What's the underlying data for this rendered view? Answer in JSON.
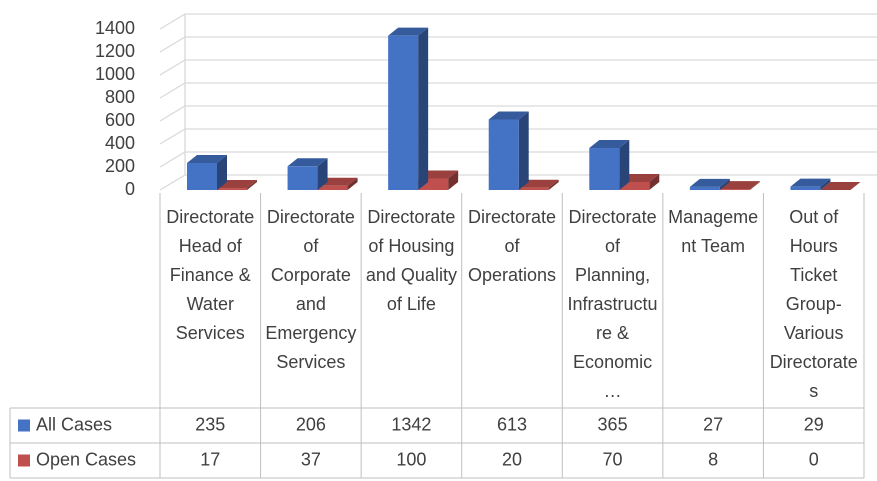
{
  "chart_data": {
    "type": "bar3d",
    "categories": [
      "Directorate Head of Finance & Water Services",
      "Directorate of Corporate and Emergency Services",
      "Directorate of Housing and Quality of Life",
      "Directorate of Operations",
      "Directorate of Planning, Infrastructure & Economic…",
      "Management Team",
      "Out of Hours Ticket Group-Various Directorates"
    ],
    "series": [
      {
        "name": "All Cases",
        "color": "#4472c4",
        "values": [
          235,
          206,
          1342,
          613,
          365,
          27,
          29
        ]
      },
      {
        "name": "Open Cases",
        "color": "#c0504d",
        "values": [
          17,
          37,
          100,
          20,
          70,
          8,
          0
        ]
      }
    ],
    "ylim": [
      0,
      1400
    ],
    "yticks": [
      0,
      200,
      400,
      600,
      800,
      1000,
      1200,
      1400
    ],
    "grid": true,
    "data_table": true
  }
}
